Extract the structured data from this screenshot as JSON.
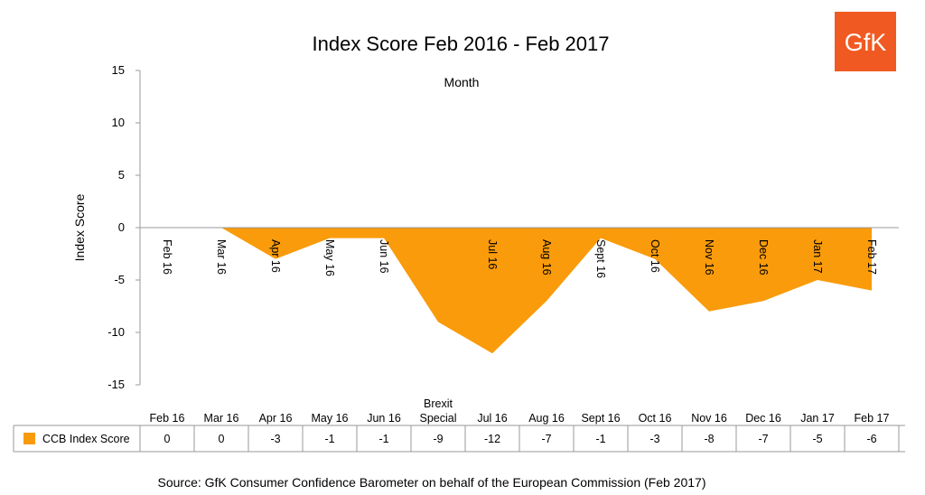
{
  "brand": {
    "logo_text": "GfK",
    "logo_color": "#f05a22"
  },
  "chart_data": {
    "type": "area",
    "title": "Index Score Feb 2016 - Feb 2017",
    "xlabel": "Month",
    "ylabel": "Index Score",
    "ylim": [
      -15,
      15
    ],
    "yticks": [
      15,
      10,
      5,
      0,
      -5,
      -10,
      -15
    ],
    "grid": false,
    "categories": [
      "Feb 16",
      "Mar 16",
      "Apr 16",
      "May 16",
      "Jun 16",
      "Brexit Special",
      "Jul 16",
      "Aug 16",
      "Sept 16",
      "Oct 16",
      "Nov 16",
      "Dec 16",
      "Jan 17",
      "Feb 17"
    ],
    "axis_labels": [
      "Feb 16",
      "Mar 16",
      "Apr 16",
      "May 16",
      "Jun 16",
      "",
      "Jul 16",
      "Aug 16",
      "Sept 16",
      "Oct 16",
      "Nov 16",
      "Dec 16",
      "Jan 17",
      "Feb 17"
    ],
    "series": [
      {
        "name": "CCB Index Score",
        "values": [
          0,
          0,
          -3,
          -1,
          -1,
          -9,
          -12,
          -7,
          -1,
          -3,
          -8,
          -7,
          -5,
          -6
        ],
        "color": "#f99b0b"
      }
    ],
    "table": {
      "headers": [
        "Feb 16",
        "Mar 16",
        "Apr 16",
        "May 16",
        "Jun 16",
        "Brexit\nSpecial",
        "Jul 16",
        "Aug 16",
        "Sept 16",
        "Oct 16",
        "Nov 16",
        "Dec 16",
        "Jan 17",
        "Feb 17"
      ],
      "row_label": "CCB Index Score",
      "row_values": [
        "0",
        "0",
        "-3",
        "-1",
        "-1",
        "-9",
        "-12",
        "-7",
        "-1",
        "-3",
        "-8",
        "-7",
        "-5",
        "-6"
      ]
    }
  },
  "footer": {
    "source": "Source: GfK Consumer Confidence Barometer on behalf of the European Commission (Feb 2017)"
  }
}
